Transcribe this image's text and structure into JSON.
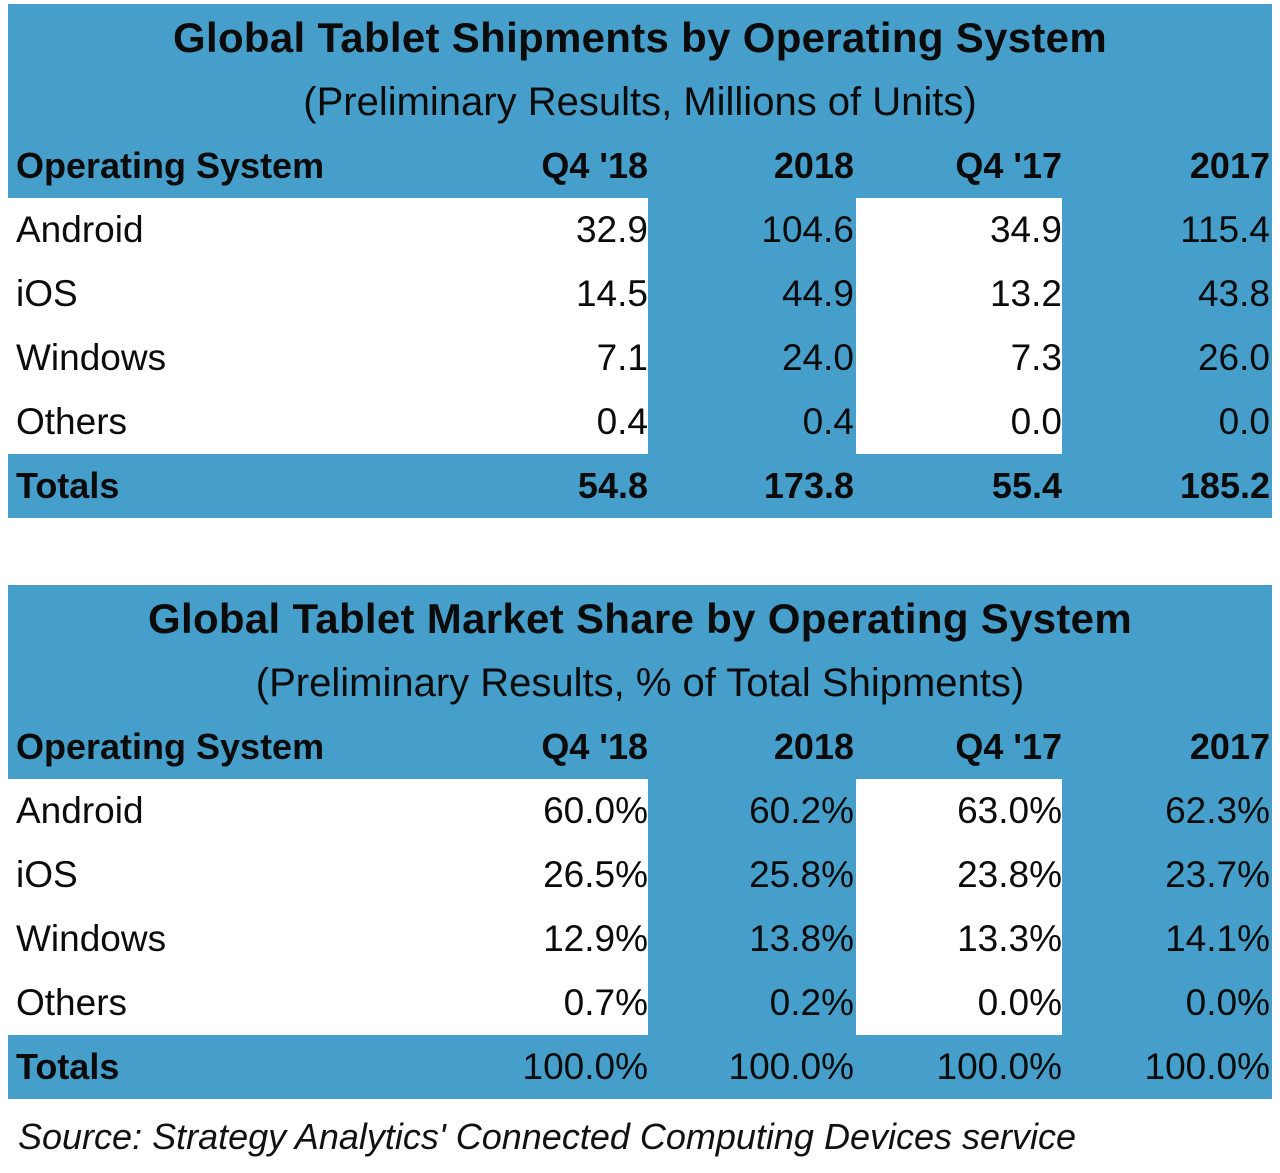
{
  "chart_data": [
    {
      "type": "table",
      "title": "Global Tablet Shipments by Operating System",
      "subtitle": "(Preliminary Results, Millions of Units)",
      "columns": [
        "Operating System",
        "Q4 '18",
        "2018",
        "Q4 '17",
        "2017"
      ],
      "rows": [
        {
          "label": "Android",
          "values": [
            "32.9",
            "104.6",
            "34.9",
            "115.4"
          ]
        },
        {
          "label": "iOS",
          "values": [
            "14.5",
            "44.9",
            "13.2",
            "43.8"
          ]
        },
        {
          "label": "Windows",
          "values": [
            "7.1",
            "24.0",
            "7.3",
            "26.0"
          ]
        },
        {
          "label": "Others",
          "values": [
            "0.4",
            "0.4",
            "0.0",
            "0.0"
          ]
        }
      ],
      "totals": {
        "label": "Totals",
        "values": [
          "54.8",
          "173.8",
          "55.4",
          "185.2"
        ]
      }
    },
    {
      "type": "table",
      "title": "Global Tablet Market Share by Operating System",
      "subtitle": "(Preliminary Results, % of Total Shipments)",
      "columns": [
        "Operating System",
        "Q4 '18",
        "2018",
        "Q4 '17",
        "2017"
      ],
      "rows": [
        {
          "label": "Android",
          "values": [
            "60.0%",
            "60.2%",
            "63.0%",
            "62.3%"
          ]
        },
        {
          "label": "iOS",
          "values": [
            "26.5%",
            "25.8%",
            "23.8%",
            "23.7%"
          ]
        },
        {
          "label": "Windows",
          "values": [
            "12.9%",
            "13.8%",
            "13.3%",
            "14.1%"
          ]
        },
        {
          "label": "Others",
          "values": [
            "0.7%",
            "0.2%",
            "0.0%",
            "0.0%"
          ]
        }
      ],
      "totals": {
        "label": "Totals",
        "values": [
          "100.0%",
          "100.0%",
          "100.0%",
          "100.0%"
        ]
      }
    }
  ],
  "source": "Source: Strategy Analytics' Connected Computing Devices service",
  "colors": {
    "band": "#459fca",
    "cell": "#ffffff",
    "text": "#0b0b0b"
  }
}
